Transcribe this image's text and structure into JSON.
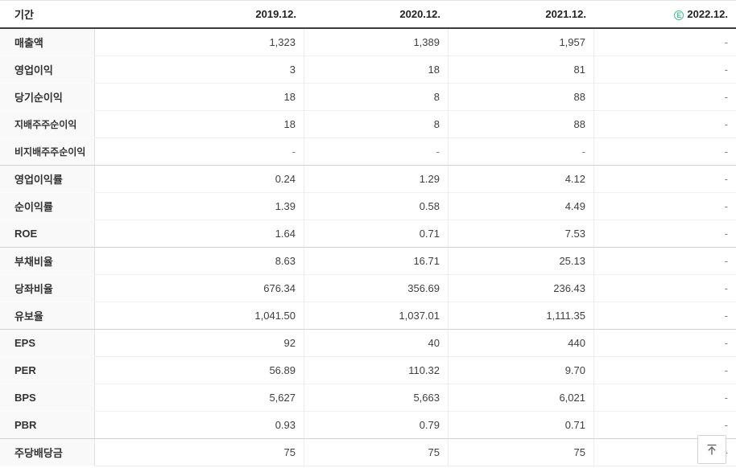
{
  "table": {
    "header": {
      "period_label": "기간",
      "columns": [
        {
          "label": "2019.12."
        },
        {
          "label": "2020.12."
        },
        {
          "label": "2021.12."
        },
        {
          "label": "2022.12.",
          "estimate": true
        }
      ],
      "estimate_icon_letter": "E"
    },
    "rows": [
      {
        "label": "매출액",
        "sub": false,
        "group_start": false,
        "values": [
          "1,323",
          "1,389",
          "1,957",
          "-"
        ]
      },
      {
        "label": "영업이익",
        "sub": false,
        "group_start": false,
        "values": [
          "3",
          "18",
          "81",
          "-"
        ]
      },
      {
        "label": "당기순이익",
        "sub": false,
        "group_start": false,
        "values": [
          "18",
          "8",
          "88",
          "-"
        ]
      },
      {
        "label": "지배주주순이익",
        "sub": true,
        "group_start": false,
        "values": [
          "18",
          "8",
          "88",
          "-"
        ]
      },
      {
        "label": "비지배주주순이익",
        "sub": true,
        "group_start": false,
        "values": [
          "-",
          "-",
          "-",
          "-"
        ]
      },
      {
        "label": "영업이익률",
        "sub": false,
        "group_start": true,
        "values": [
          "0.24",
          "1.29",
          "4.12",
          "-"
        ]
      },
      {
        "label": "순이익률",
        "sub": false,
        "group_start": false,
        "values": [
          "1.39",
          "0.58",
          "4.49",
          "-"
        ]
      },
      {
        "label": "ROE",
        "sub": false,
        "group_start": false,
        "values": [
          "1.64",
          "0.71",
          "7.53",
          "-"
        ]
      },
      {
        "label": "부채비율",
        "sub": false,
        "group_start": true,
        "values": [
          "8.63",
          "16.71",
          "25.13",
          "-"
        ]
      },
      {
        "label": "당좌비율",
        "sub": false,
        "group_start": false,
        "values": [
          "676.34",
          "356.69",
          "236.43",
          "-"
        ]
      },
      {
        "label": "유보율",
        "sub": false,
        "group_start": false,
        "values": [
          "1,041.50",
          "1,037.01",
          "1,111.35",
          "-"
        ]
      },
      {
        "label": "EPS",
        "sub": false,
        "group_start": true,
        "values": [
          "92",
          "40",
          "440",
          "-"
        ]
      },
      {
        "label": "PER",
        "sub": false,
        "group_start": false,
        "values": [
          "56.89",
          "110.32",
          "9.70",
          "-"
        ]
      },
      {
        "label": "BPS",
        "sub": false,
        "group_start": false,
        "values": [
          "5,627",
          "5,663",
          "6,021",
          "-"
        ]
      },
      {
        "label": "PBR",
        "sub": false,
        "group_start": false,
        "values": [
          "0.93",
          "0.79",
          "0.71",
          "-"
        ]
      },
      {
        "label": "주당배당금",
        "sub": false,
        "group_start": true,
        "values": [
          "75",
          "75",
          "75",
          "-"
        ]
      }
    ]
  },
  "colors": {
    "estimate_green": "#4cc08d",
    "header_rule": "#3c3c3c",
    "group_rule": "#cfcfcf"
  }
}
